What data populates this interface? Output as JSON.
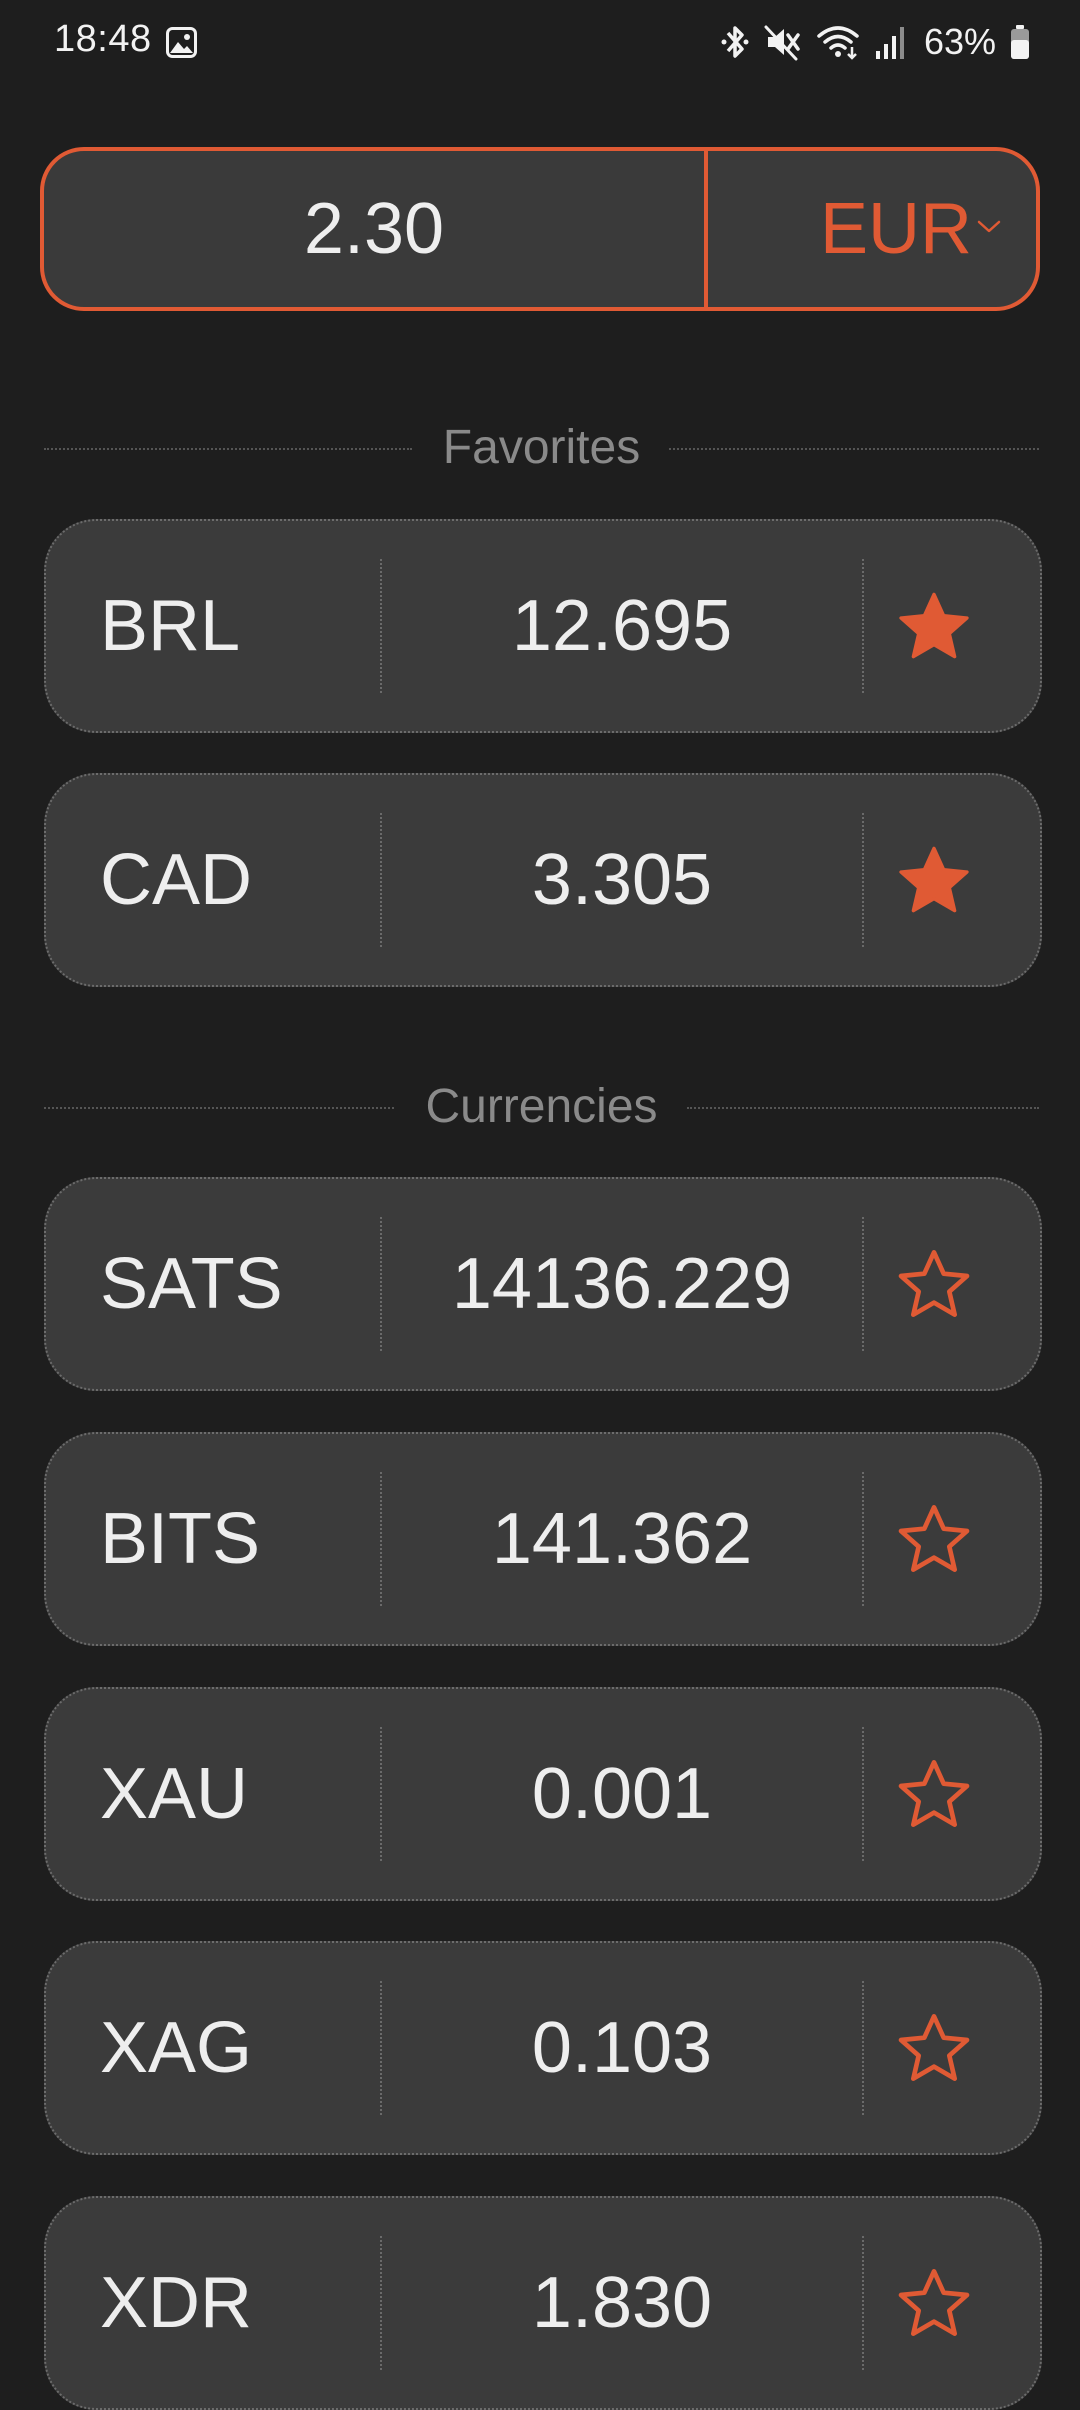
{
  "status_bar": {
    "time": "18:48",
    "battery": "63%",
    "icons": [
      "gallery-icon",
      "bluetooth-icon",
      "mute-icon",
      "wifi-icon",
      "signal-icon",
      "battery-icon"
    ]
  },
  "converter": {
    "amount": "2.30",
    "currency": "EUR",
    "accent_color": "#e05a34"
  },
  "sections": {
    "favorites": "Favorites",
    "currencies": "Currencies"
  },
  "favorites": [
    {
      "code": "BRL",
      "value": "12.695",
      "favorite": true
    },
    {
      "code": "CAD",
      "value": "3.305",
      "favorite": true
    }
  ],
  "currencies": [
    {
      "code": "SATS",
      "value": "14136.229",
      "favorite": false
    },
    {
      "code": "BITS",
      "value": "141.362",
      "favorite": false
    },
    {
      "code": "XAU",
      "value": "0.001",
      "favorite": false
    },
    {
      "code": "XAG",
      "value": "0.103",
      "favorite": false
    },
    {
      "code": "XDR",
      "value": "1.830",
      "favorite": false
    }
  ]
}
